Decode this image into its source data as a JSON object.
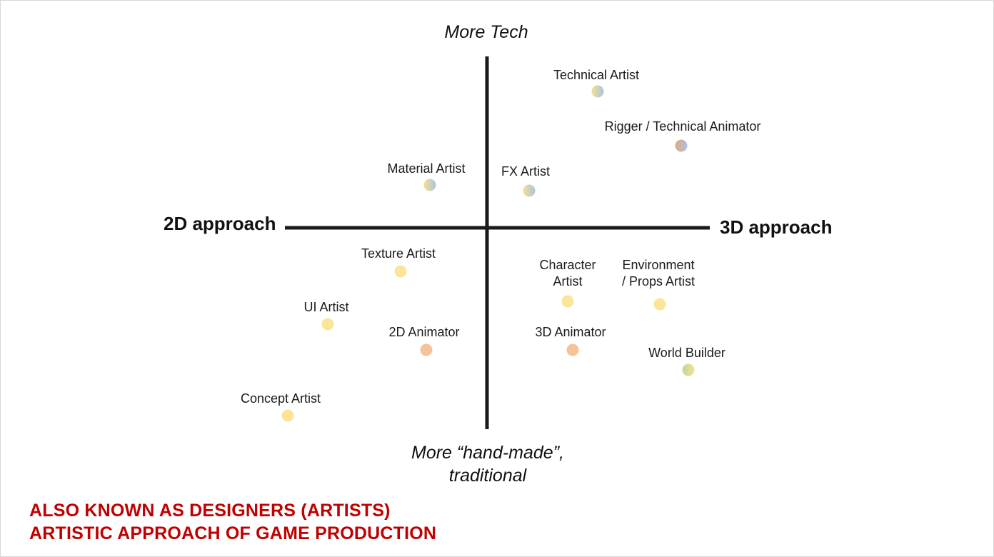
{
  "axes": {
    "top": "More Tech",
    "bottom_line1": "More “hand-made”,",
    "bottom_line2": "traditional",
    "left": "2D approach",
    "right": "3D approach"
  },
  "roles": [
    {
      "id": "technical-artist",
      "label": "Technical Artist",
      "dot_colors": [
        "#f7e08e",
        "#a9c4e6"
      ]
    },
    {
      "id": "rigger",
      "label": "Rigger / Technical Animator",
      "dot_colors": [
        "#e7a77a",
        "#a9c4e6"
      ]
    },
    {
      "id": "material-artist",
      "label": "Material Artist",
      "dot_colors": [
        "#f7e08e",
        "#a9c4e6"
      ]
    },
    {
      "id": "fx-artist",
      "label": "FX Artist",
      "dot_colors": [
        "#f7e08e",
        "#a9c4e6"
      ]
    },
    {
      "id": "texture-artist",
      "label": "Texture Artist",
      "dot_colors": [
        "#fbe598",
        "#fbe598"
      ]
    },
    {
      "id": "character-artist",
      "label": "Character Artist",
      "label_line1": "Character",
      "label_line2": "Artist",
      "dot_colors": [
        "#fbe598",
        "#fbe598"
      ]
    },
    {
      "id": "environment-artist",
      "label": "Environment / Props Artist",
      "label_line1": "Environment",
      "label_line2": "/ Props Artist",
      "dot_colors": [
        "#fbe598",
        "#fbe598"
      ]
    },
    {
      "id": "ui-artist",
      "label": "UI Artist",
      "dot_colors": [
        "#fbe598",
        "#fbe598"
      ]
    },
    {
      "id": "2d-animator",
      "label": "2D Animator",
      "dot_colors": [
        "#f6c398",
        "#f6c398"
      ]
    },
    {
      "id": "3d-animator",
      "label": "3D Animator",
      "dot_colors": [
        "#f6c398",
        "#f6c398"
      ]
    },
    {
      "id": "world-builder",
      "label": "World Builder",
      "dot_colors": [
        "#bcd8a0",
        "#f7e08e"
      ]
    },
    {
      "id": "concept-artist",
      "label": "Concept Artist",
      "dot_colors": [
        "#fbe598",
        "#fbe598"
      ]
    }
  ],
  "footer": {
    "line1": "ALSO KNOWN AS DESIGNERS (ARTISTS)",
    "line2": "ARTISTIC APPROACH OF GAME PRODUCTION",
    "color": "#c00000"
  }
}
